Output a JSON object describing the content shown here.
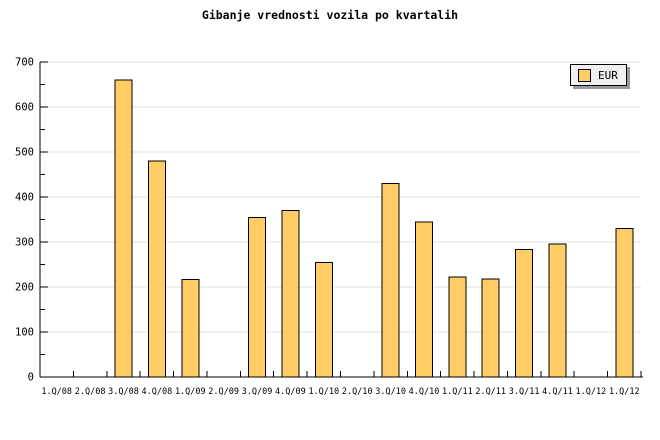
{
  "chart_data": {
    "type": "bar",
    "title": "Gibanje vrednosti vozila po kvartalih",
    "categories": [
      "1.Q/08",
      "2.Q/08",
      "3.Q/08",
      "4.Q/08",
      "1.Q/09",
      "2.Q/09",
      "3.Q/09",
      "4.Q/09",
      "1.Q/10",
      "2.Q/10",
      "3.Q/10",
      "4.Q/10",
      "1.Q/11",
      "2.Q/11",
      "3.Q/11",
      "4.Q/11",
      "1.Q/12",
      "1.Q/12"
    ],
    "series": [
      {
        "name": "EUR",
        "values": [
          null,
          null,
          660,
          480,
          217,
          null,
          355,
          370,
          255,
          null,
          430,
          345,
          222,
          218,
          283,
          296,
          null,
          330
        ]
      }
    ],
    "xlabel": "",
    "ylabel": "",
    "ylim": [
      0,
      700
    ],
    "ytick_step": 100,
    "ytick_minor_step": 50,
    "grid": "horizontal-major",
    "legend_position": "top-right",
    "colors": {
      "bar_fill": "#FFCC66",
      "bar_border": "#000000",
      "grid": "#E0E0E0",
      "axis": "#000000",
      "text": "#000000",
      "legend_bg": "#F0F0F0",
      "legend_border": "#000000",
      "legend_shadow": "#999999",
      "background": "#FFFFFF"
    }
  }
}
